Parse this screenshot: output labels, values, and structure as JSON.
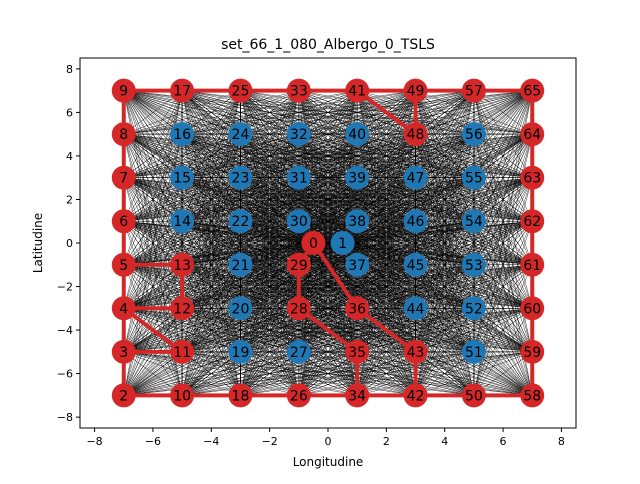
{
  "chart_data": {
    "type": "scatter",
    "title": "set_66_1_080_Albergo_0_TSLS",
    "xlabel": "Longitudine",
    "ylabel": "Latitudine",
    "xlim": [
      -8.5,
      8.5
    ],
    "ylim": [
      -8.5,
      8.5
    ],
    "xticks": [
      -8,
      -6,
      -4,
      -2,
      0,
      2,
      4,
      6,
      8
    ],
    "yticks": [
      -8,
      -6,
      -4,
      -2,
      0,
      2,
      4,
      6,
      8
    ],
    "grid": false,
    "legend": "none",
    "colors": {
      "selected": "#d62728",
      "unselected": "#1f77b4",
      "route": "#d62728",
      "background_edges": "#000000",
      "axes": "#000000"
    },
    "nodes": [
      {
        "id": "0",
        "x": -0.5,
        "y": 0,
        "selected": true
      },
      {
        "id": "1",
        "x": 0.5,
        "y": 0,
        "selected": false
      },
      {
        "id": "2",
        "x": -7,
        "y": -7,
        "selected": true
      },
      {
        "id": "3",
        "x": -7,
        "y": -5,
        "selected": true
      },
      {
        "id": "4",
        "x": -7,
        "y": -3,
        "selected": true
      },
      {
        "id": "5",
        "x": -7,
        "y": -1,
        "selected": true
      },
      {
        "id": "6",
        "x": -7,
        "y": 1,
        "selected": true
      },
      {
        "id": "7",
        "x": -7,
        "y": 3,
        "selected": true
      },
      {
        "id": "8",
        "x": -7,
        "y": 5,
        "selected": true
      },
      {
        "id": "9",
        "x": -7,
        "y": 7,
        "selected": true
      },
      {
        "id": "10",
        "x": -5,
        "y": -7,
        "selected": true
      },
      {
        "id": "11",
        "x": -5,
        "y": -5,
        "selected": true
      },
      {
        "id": "12",
        "x": -5,
        "y": -3,
        "selected": true
      },
      {
        "id": "13",
        "x": -5,
        "y": -1,
        "selected": true
      },
      {
        "id": "14",
        "x": -5,
        "y": 1,
        "selected": false
      },
      {
        "id": "15",
        "x": -5,
        "y": 3,
        "selected": false
      },
      {
        "id": "16",
        "x": -5,
        "y": 5,
        "selected": false
      },
      {
        "id": "17",
        "x": -5,
        "y": 7,
        "selected": true
      },
      {
        "id": "18",
        "x": -3,
        "y": -7,
        "selected": true
      },
      {
        "id": "19",
        "x": -3,
        "y": -5,
        "selected": false
      },
      {
        "id": "20",
        "x": -3,
        "y": -3,
        "selected": false
      },
      {
        "id": "21",
        "x": -3,
        "y": -1,
        "selected": false
      },
      {
        "id": "22",
        "x": -3,
        "y": 1,
        "selected": false
      },
      {
        "id": "23",
        "x": -3,
        "y": 3,
        "selected": false
      },
      {
        "id": "24",
        "x": -3,
        "y": 5,
        "selected": false
      },
      {
        "id": "25",
        "x": -3,
        "y": 7,
        "selected": true
      },
      {
        "id": "26",
        "x": -1,
        "y": -7,
        "selected": true
      },
      {
        "id": "27",
        "x": -1,
        "y": -5,
        "selected": false
      },
      {
        "id": "28",
        "x": -1,
        "y": -3,
        "selected": true
      },
      {
        "id": "29",
        "x": -1,
        "y": -1,
        "selected": true
      },
      {
        "id": "30",
        "x": -1,
        "y": 1,
        "selected": false
      },
      {
        "id": "31",
        "x": -1,
        "y": 3,
        "selected": false
      },
      {
        "id": "32",
        "x": -1,
        "y": 5,
        "selected": false
      },
      {
        "id": "33",
        "x": -1,
        "y": 7,
        "selected": true
      },
      {
        "id": "34",
        "x": 1,
        "y": -7,
        "selected": true
      },
      {
        "id": "35",
        "x": 1,
        "y": -5,
        "selected": true
      },
      {
        "id": "36",
        "x": 1,
        "y": -3,
        "selected": true
      },
      {
        "id": "37",
        "x": 1,
        "y": -1,
        "selected": false
      },
      {
        "id": "38",
        "x": 1,
        "y": 1,
        "selected": false
      },
      {
        "id": "39",
        "x": 1,
        "y": 3,
        "selected": false
      },
      {
        "id": "40",
        "x": 1,
        "y": 5,
        "selected": false
      },
      {
        "id": "41",
        "x": 1,
        "y": 7,
        "selected": true
      },
      {
        "id": "42",
        "x": 3,
        "y": -7,
        "selected": true
      },
      {
        "id": "43",
        "x": 3,
        "y": -5,
        "selected": true
      },
      {
        "id": "44",
        "x": 3,
        "y": -3,
        "selected": false
      },
      {
        "id": "45",
        "x": 3,
        "y": -1,
        "selected": false
      },
      {
        "id": "46",
        "x": 3,
        "y": 1,
        "selected": false
      },
      {
        "id": "47",
        "x": 3,
        "y": 3,
        "selected": false
      },
      {
        "id": "48",
        "x": 3,
        "y": 5,
        "selected": true
      },
      {
        "id": "49",
        "x": 3,
        "y": 7,
        "selected": true
      },
      {
        "id": "50",
        "x": 5,
        "y": -7,
        "selected": true
      },
      {
        "id": "51",
        "x": 5,
        "y": -5,
        "selected": false
      },
      {
        "id": "52",
        "x": 5,
        "y": -3,
        "selected": false
      },
      {
        "id": "53",
        "x": 5,
        "y": -1,
        "selected": false
      },
      {
        "id": "54",
        "x": 5,
        "y": 1,
        "selected": false
      },
      {
        "id": "55",
        "x": 5,
        "y": 3,
        "selected": false
      },
      {
        "id": "56",
        "x": 5,
        "y": 5,
        "selected": false
      },
      {
        "id": "57",
        "x": 5,
        "y": 7,
        "selected": true
      },
      {
        "id": "58",
        "x": 7,
        "y": -7,
        "selected": true
      },
      {
        "id": "59",
        "x": 7,
        "y": -5,
        "selected": true
      },
      {
        "id": "60",
        "x": 7,
        "y": -3,
        "selected": true
      },
      {
        "id": "61",
        "x": 7,
        "y": -1,
        "selected": true
      },
      {
        "id": "62",
        "x": 7,
        "y": 1,
        "selected": true
      },
      {
        "id": "63",
        "x": 7,
        "y": 3,
        "selected": true
      },
      {
        "id": "64",
        "x": 7,
        "y": 5,
        "selected": true
      },
      {
        "id": "65",
        "x": 7,
        "y": 7,
        "selected": true
      }
    ],
    "route_edges": [
      [
        "0",
        "29"
      ],
      [
        "29",
        "28"
      ],
      [
        "28",
        "35"
      ],
      [
        "35",
        "34"
      ],
      [
        "0",
        "36"
      ],
      [
        "36",
        "43"
      ],
      [
        "43",
        "42"
      ],
      [
        "2",
        "3"
      ],
      [
        "3",
        "4"
      ],
      [
        "4",
        "5"
      ],
      [
        "5",
        "6"
      ],
      [
        "6",
        "7"
      ],
      [
        "7",
        "8"
      ],
      [
        "8",
        "9"
      ],
      [
        "9",
        "17"
      ],
      [
        "17",
        "25"
      ],
      [
        "25",
        "33"
      ],
      [
        "33",
        "41"
      ],
      [
        "41",
        "49"
      ],
      [
        "49",
        "57"
      ],
      [
        "57",
        "65"
      ],
      [
        "65",
        "64"
      ],
      [
        "64",
        "63"
      ],
      [
        "63",
        "62"
      ],
      [
        "62",
        "61"
      ],
      [
        "61",
        "60"
      ],
      [
        "60",
        "59"
      ],
      [
        "59",
        "58"
      ],
      [
        "58",
        "50"
      ],
      [
        "50",
        "42"
      ],
      [
        "42",
        "34"
      ],
      [
        "34",
        "26"
      ],
      [
        "26",
        "18"
      ],
      [
        "18",
        "10"
      ],
      [
        "10",
        "2"
      ],
      [
        "3",
        "11"
      ],
      [
        "4",
        "11"
      ],
      [
        "4",
        "12"
      ],
      [
        "12",
        "13"
      ],
      [
        "5",
        "13"
      ],
      [
        "41",
        "48"
      ],
      [
        "48",
        "49"
      ]
    ],
    "background_edges_all_pairs": true
  }
}
